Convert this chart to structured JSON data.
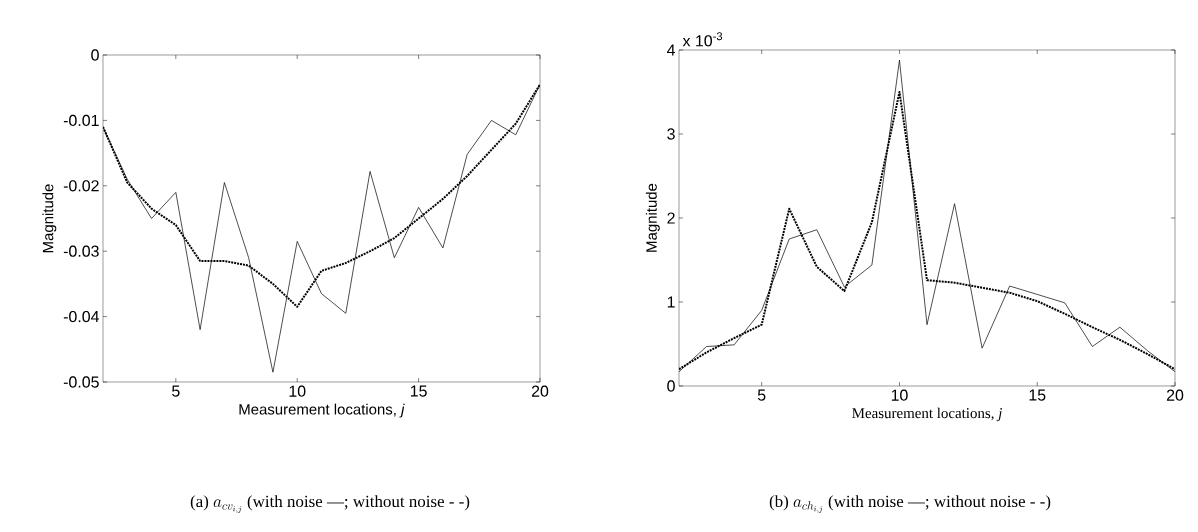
{
  "chart_data": [
    {
      "type": "line",
      "xlabel": "Measurement locations, *j*",
      "ylabel": "Magnitude",
      "x": [
        2,
        3,
        4,
        5,
        6,
        7,
        8,
        9,
        10,
        11,
        12,
        13,
        14,
        15,
        16,
        17,
        18,
        19,
        20
      ],
      "xlim": [
        2,
        20
      ],
      "xticks": [
        5,
        10,
        15,
        20
      ],
      "ylim": [
        -0.05,
        0
      ],
      "yticks": [
        -0.05,
        -0.04,
        -0.03,
        -0.02,
        -0.01,
        0
      ],
      "series": [
        {
          "color": "#000000",
          "line_style": "solid",
          "values": [
            -0.011,
            -0.019,
            -0.025,
            -0.021,
            -0.042,
            -0.0195,
            -0.031,
            -0.0485,
            -0.0285,
            -0.0365,
            -0.0395,
            -0.0178,
            -0.031,
            -0.0233,
            -0.0295,
            -0.0152,
            -0.01,
            -0.0122,
            -0.0045
          ]
        },
        {
          "color": "#000000",
          "line_style": "dotted",
          "values": [
            -0.011,
            -0.0195,
            -0.0235,
            -0.026,
            -0.0315,
            -0.0315,
            -0.0322,
            -0.035,
            -0.0385,
            -0.033,
            -0.0318,
            -0.03,
            -0.028,
            -0.025,
            -0.022,
            -0.0185,
            -0.0145,
            -0.0105,
            -0.0045
          ]
        }
      ],
      "annotations": [
        "(a)",
        "a_{cv_{i,j}}",
        "(with noise —; without noise - -)"
      ]
    },
    {
      "type": "line",
      "xlabel": "Measurement locations, *j*",
      "ylabel": "Magnitude",
      "x": [
        2,
        3,
        4,
        5,
        6,
        7,
        8,
        9,
        10,
        11,
        12,
        13,
        14,
        15,
        16,
        17,
        18,
        19,
        20
      ],
      "xlim": [
        2,
        20
      ],
      "xticks": [
        5,
        10,
        15,
        20
      ],
      "ylim": [
        0,
        4
      ],
      "yticks": [
        0,
        1,
        2,
        3,
        4
      ],
      "series": [
        {
          "color": "#000000",
          "line_style": "solid",
          "values": [
            0.17,
            0.47,
            0.49,
            0.9,
            1.75,
            1.86,
            1.18,
            1.44,
            3.88,
            0.73,
            2.17,
            0.45,
            1.19,
            1.09,
            0.99,
            0.47,
            0.7,
            0.42,
            0.17
          ]
        },
        {
          "color": "#000000",
          "line_style": "dotted",
          "values": [
            0.2,
            0.4,
            0.57,
            0.73,
            2.11,
            1.42,
            1.13,
            1.95,
            3.5,
            1.26,
            1.23,
            1.17,
            1.11,
            1.01,
            0.86,
            0.7,
            0.55,
            0.38,
            0.2
          ]
        }
      ],
      "annotations": [
        "x 10$^{-3}$",
        "(b)",
        "a_{ch_{i,j}}",
        "(with noise —; without noise - -)"
      ]
    }
  ]
}
